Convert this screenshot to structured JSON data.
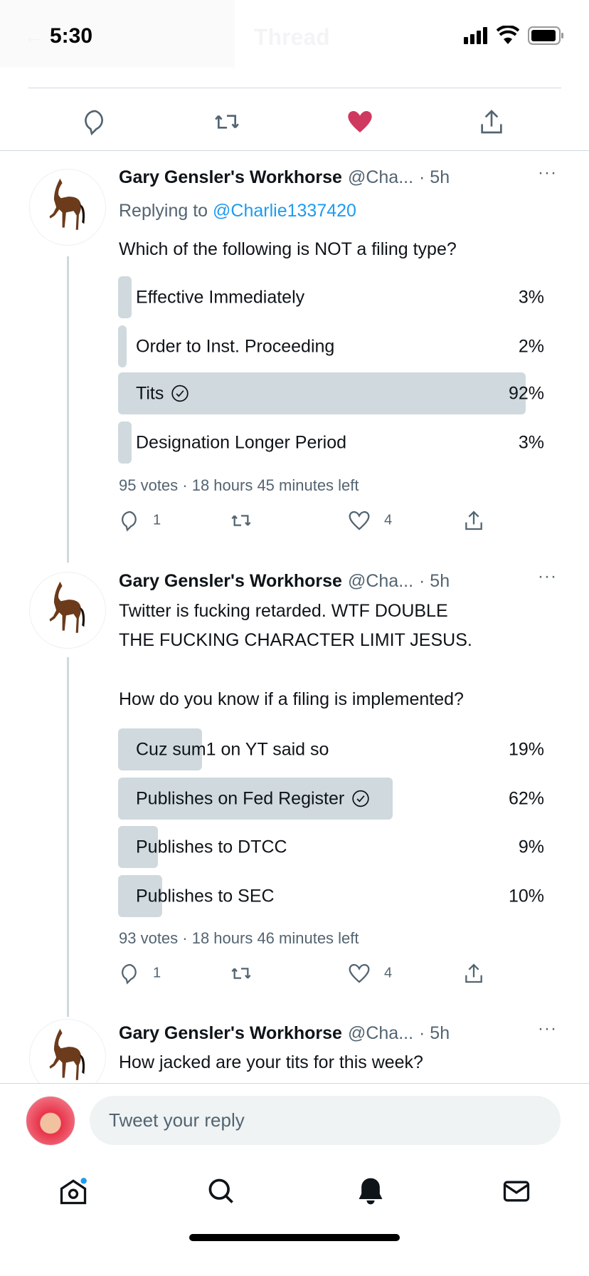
{
  "status_bar": {
    "time": "5:30"
  },
  "header": {
    "title": "Thread"
  },
  "colors": {
    "accent": "#1d9bf0",
    "like": "#f91880",
    "muted": "#536471",
    "poll_bar": "#cfd9de"
  },
  "tweets": [
    {
      "name": "Gary Gensler's Workhorse",
      "handle": "@Cha...",
      "time": "· 5h",
      "replying_prefix": "Replying to ",
      "replying_to": "@Charlie1337420",
      "text": [
        "Which of the following is NOT a filing type?"
      ],
      "poll": [
        {
          "label": "Effective Immediately",
          "pct": 3,
          "pct_label": "3%"
        },
        {
          "label": "Order to Inst. Proceeding",
          "pct": 2,
          "pct_label": "2%"
        },
        {
          "label": "Tits",
          "pct": 92,
          "pct_label": "92%",
          "winner": true
        },
        {
          "label": "Designation Longer Period",
          "pct": 3,
          "pct_label": "3%"
        }
      ],
      "poll_meta": "95 votes · 18 hours 45 minutes left",
      "replies": "1",
      "likes": "4"
    },
    {
      "name": "Gary Gensler's Workhorse",
      "handle": "@Cha...",
      "time": "· 5h",
      "text": [
        "Twitter is fucking retarded. WTF DOUBLE",
        "THE FUCKING CHARACTER LIMIT JESUS.",
        "How do you know if a filing is implemented?"
      ],
      "poll": [
        {
          "label": "Cuz sum1 on YT said so",
          "pct": 19,
          "pct_label": "19%"
        },
        {
          "label": "Publishes on Fed Register",
          "pct": 62,
          "pct_label": "62%",
          "winner": true
        },
        {
          "label": "Publishes to DTCC",
          "pct": 9,
          "pct_label": "9%"
        },
        {
          "label": "Publishes to SEC",
          "pct": 10,
          "pct_label": "10%"
        }
      ],
      "poll_meta": "93 votes · 18 hours 46 minutes left",
      "replies": "1",
      "likes": "4"
    },
    {
      "name": "Gary Gensler's Workhorse",
      "handle": "@Cha...",
      "time": "· 5h",
      "text": [
        "How jacked are your tits for this week?"
      ]
    }
  ],
  "reply": {
    "placeholder": "Tweet your reply"
  },
  "tabs": [
    "home-icon",
    "search-icon",
    "notifications-icon",
    "messages-icon"
  ]
}
